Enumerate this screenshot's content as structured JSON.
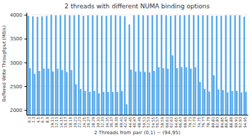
{
  "chart_data": {
    "type": "bar",
    "title": "2 threads with different NUMA binding options",
    "xlabel": "2 Threads from pair (0,1) ~ (94,95)",
    "ylabel": "Buffered Write Throughput (MB/s)",
    "categories": [
      "0,1",
      "2,3",
      "4,5",
      "6,7",
      "8,9",
      "10,11",
      "12,13",
      "14,15",
      "16,17",
      "18,19",
      "20,21",
      "22,23",
      "24,25",
      "26,27",
      "28,29",
      "30,31",
      "32,33",
      "34,35",
      "36,37",
      "38,39",
      "40,41",
      "42,43",
      "44,45",
      "46,47",
      "48,49",
      "50,51",
      "52,53",
      "54,55",
      "56,57",
      "58,59",
      "60,61",
      "62,63",
      "64,65",
      "66,67",
      "68,69",
      "70,71",
      "72,73",
      "74,75",
      "76,77",
      "78,79",
      "80,81",
      "82,83",
      "84,85",
      "86,87",
      "88,89",
      "90,91",
      "92,93",
      "94,95"
    ],
    "series": [
      {
        "color": "#5aabeb",
        "values": [
          3980,
          3970,
          3960,
          3970,
          3980,
          4000,
          3990,
          3990,
          4000,
          3990,
          3990,
          4000,
          3980,
          3990,
          3990,
          3990,
          3980,
          3980,
          3990,
          3990,
          3980,
          3970,
          3800,
          3990,
          4000,
          3990,
          3990,
          3990,
          4000,
          4000,
          3990,
          3980,
          3990,
          3990,
          3990,
          4000,
          3990,
          3990,
          3990,
          3990,
          3980,
          3980,
          3980,
          3990,
          3990,
          3990,
          3990,
          3960
        ]
      },
      {
        "color": "#5aabeb",
        "values": [
          2880,
          2760,
          2820,
          2870,
          2870,
          2810,
          2870,
          2840,
          2800,
          2840,
          2540,
          2440,
          2400,
          2380,
          2400,
          2350,
          2380,
          2380,
          2380,
          2380,
          2400,
          2120,
          2850,
          2810,
          2810,
          2800,
          2790,
          2820,
          2900,
          2880,
          2870,
          3150,
          2880,
          2900,
          2900,
          2870,
          2900,
          2590,
          2440,
          2390,
          2730,
          2430,
          2420,
          2370,
          2400,
          2400,
          2370,
          2380
        ]
      }
    ],
    "ylim": [
      1900,
      4050
    ],
    "yticks": [
      2000,
      2500,
      3000,
      3500,
      4000
    ],
    "grid": true
  }
}
